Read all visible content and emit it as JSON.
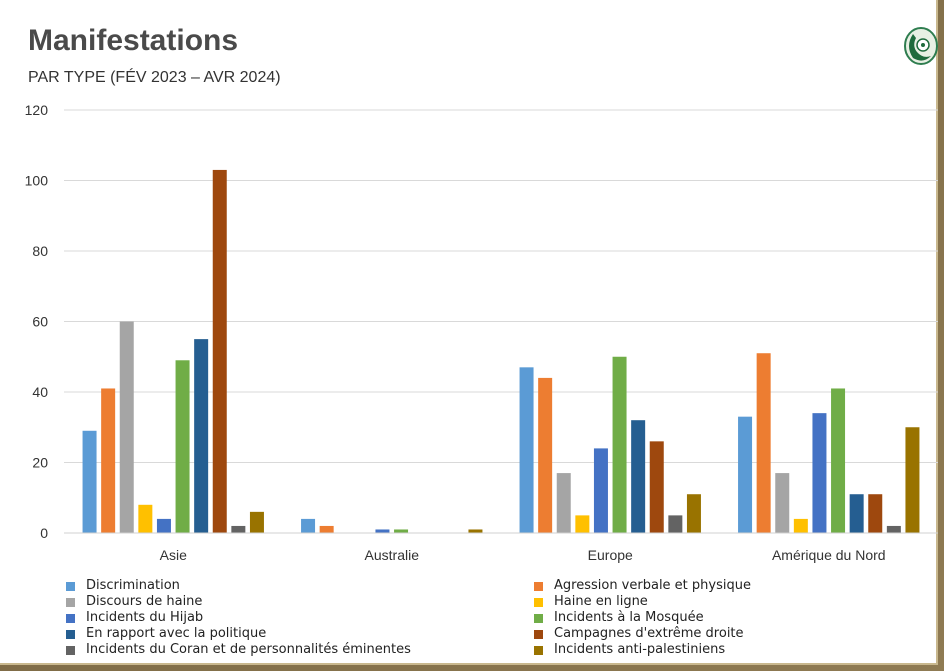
{
  "header": {
    "title": "Manifestations",
    "subtitle": "PAR TYPE (FÉV 2023 – AVR 2024)",
    "logo_icon": "oic-globe-logo"
  },
  "colors": {
    "background": "#8f7b53",
    "panel": "#ffffff",
    "gridline": "#d9d9d9",
    "title_text": "#4a4a4a"
  },
  "chart_data": {
    "type": "bar",
    "title": "Manifestations",
    "subtitle": "PAR TYPE (FÉV 2023 – AVR 2024)",
    "xlabel": "",
    "ylabel": "",
    "ylim": [
      0,
      120
    ],
    "yticks": [
      0,
      20,
      40,
      60,
      80,
      100,
      120
    ],
    "grid": true,
    "legend_position": "bottom",
    "categories": [
      "Asie",
      "Australie",
      "Europe",
      "Amérique du Nord"
    ],
    "series": [
      {
        "name": "Discrimination",
        "color": "#5b9bd5",
        "values": [
          29,
          4,
          47,
          33
        ]
      },
      {
        "name": "Agression verbale et physique",
        "color": "#ed7d31",
        "values": [
          41,
          2,
          44,
          51
        ]
      },
      {
        "name": "Discours de haine",
        "color": "#a5a5a5",
        "values": [
          60,
          0,
          17,
          17
        ]
      },
      {
        "name": "Haine en ligne",
        "color": "#ffc000",
        "values": [
          8,
          0,
          5,
          4
        ]
      },
      {
        "name": "Incidents du Hijab",
        "color": "#4472c4",
        "values": [
          4,
          1,
          24,
          34
        ]
      },
      {
        "name": "Incidents à la Mosquée",
        "color": "#70ad47",
        "values": [
          49,
          1,
          50,
          41
        ]
      },
      {
        "name": "En rapport avec la politique",
        "color": "#255e91",
        "values": [
          55,
          0,
          32,
          11
        ]
      },
      {
        "name": "Campagnes d'extrême droite",
        "color": "#9e480e",
        "values": [
          103,
          0,
          26,
          11
        ]
      },
      {
        "name": "Incidents du Coran et de personnalités éminentes",
        "color": "#636363",
        "values": [
          2,
          0,
          5,
          2
        ]
      },
      {
        "name": "Incidents anti-palestiniens",
        "color": "#997300",
        "values": [
          6,
          1,
          11,
          30
        ]
      }
    ]
  }
}
